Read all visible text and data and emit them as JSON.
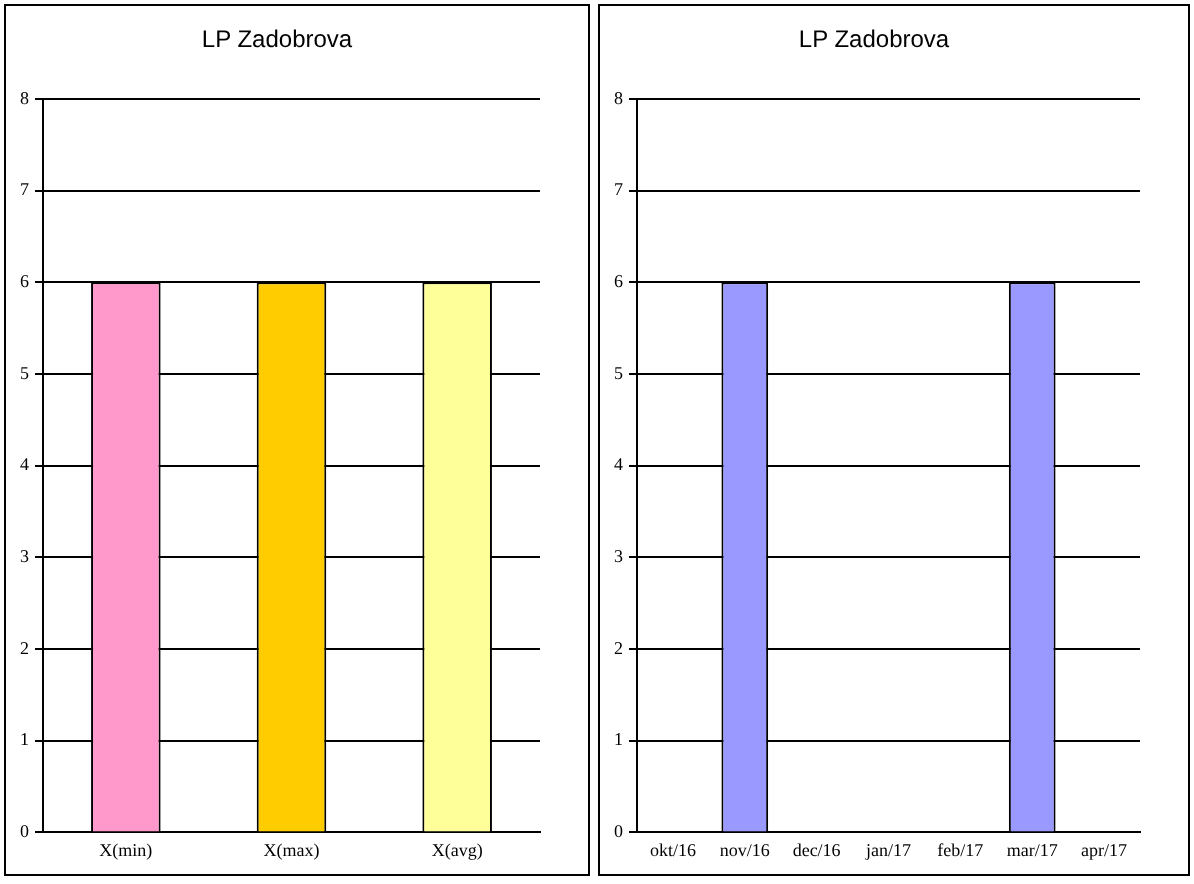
{
  "chart_data": [
    {
      "type": "bar",
      "title": "LP Zadobrova",
      "categories": [
        "X(min)",
        "X(max)",
        "X(avg)"
      ],
      "values": [
        6,
        6,
        6
      ],
      "colors": [
        "#ff99cc",
        "#ffcc00",
        "#ffff99"
      ],
      "ylim": [
        0,
        8
      ],
      "yticks": [
        0,
        1,
        2,
        3,
        4,
        5,
        6,
        7,
        8
      ],
      "grid": "y"
    },
    {
      "type": "bar",
      "title": "LP Zadobrova",
      "categories": [
        "okt/16",
        "nov/16",
        "dec/16",
        "jan/17",
        "feb/17",
        "mar/17",
        "apr/17"
      ],
      "values": [
        null,
        6,
        null,
        null,
        null,
        6,
        null
      ],
      "color": "#9999ff",
      "ylim": [
        0,
        8
      ],
      "yticks": [
        0,
        1,
        2,
        3,
        4,
        5,
        6,
        7,
        8
      ],
      "grid": "y"
    }
  ]
}
